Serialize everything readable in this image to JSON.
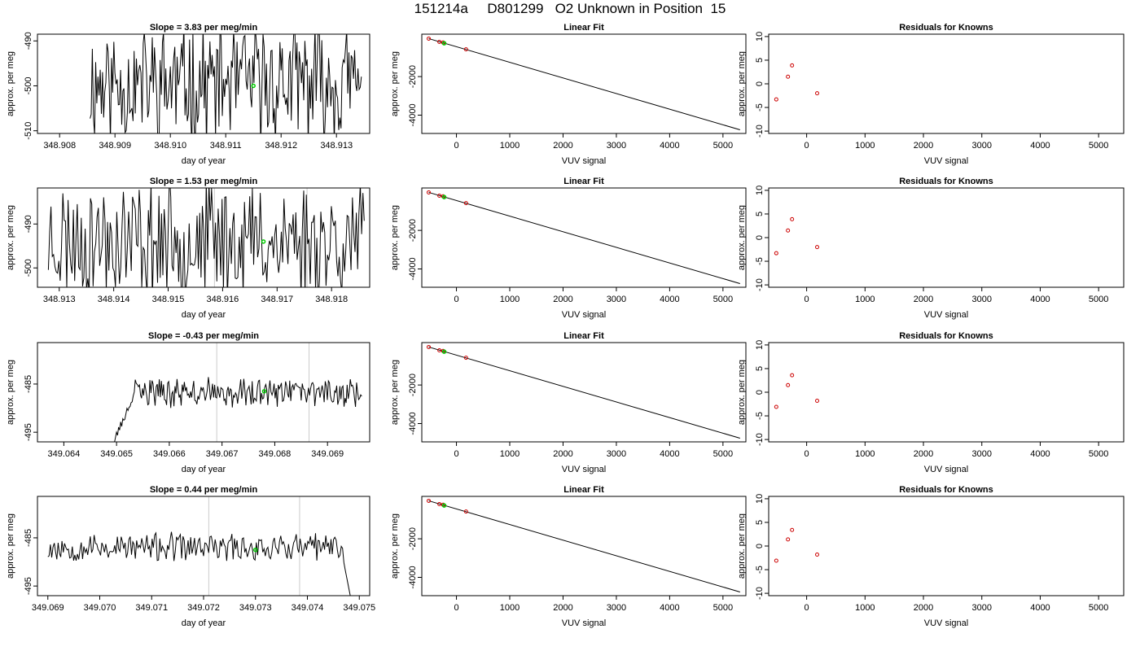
{
  "figure": {
    "title": "151214a     D801299   O2 Unknown in Position  15"
  },
  "chart_data": [
    {
      "type": "line",
      "panel": "signal-1",
      "title": "Slope =  3.83  per meg/min",
      "xlabel": "day of year",
      "ylabel": "approx. per meg",
      "xlim": [
        348.9076,
        348.9136
      ],
      "ylim": [
        -510.6,
        -488.5
      ],
      "xticks": [
        348.908,
        348.909,
        348.91,
        348.911,
        348.912,
        348.913
      ],
      "xtick_labels": [
        "348.908",
        "348.909",
        "348.910",
        "348.911",
        "348.912",
        "348.913"
      ],
      "yticks": [
        -510,
        -500,
        -490
      ],
      "ytick_labels": [
        "-510",
        "-500",
        "-490"
      ],
      "trace": {
        "x_start": 348.90855,
        "x_end": 348.91345,
        "baseline": -499.5,
        "amplitude": 11.5,
        "seed": 11
      },
      "vlines": [],
      "marker": {
        "x": 348.9115,
        "y": -500,
        "color": "#00cc00"
      }
    },
    {
      "type": "line",
      "panel": "signal-2",
      "title": "Slope =  1.53  per meg/min",
      "xlabel": "day of year",
      "ylabel": "approx. per meg",
      "xlim": [
        348.9126,
        348.9187
      ],
      "ylim": [
        -504.4,
        -481.8
      ],
      "xticks": [
        348.913,
        348.914,
        348.915,
        348.916,
        348.917,
        348.918
      ],
      "xtick_labels": [
        "348.913",
        "348.914",
        "348.915",
        "348.916",
        "348.917",
        "348.918"
      ],
      "yticks": [
        -500,
        -490
      ],
      "ytick_labels": [
        "-500",
        "-490"
      ],
      "trace": {
        "x_start": 348.9128,
        "x_end": 348.9186,
        "baseline": -493.5,
        "amplitude": 11.5,
        "seed": 23
      },
      "vlines": [
        348.91585,
        348.91755
      ],
      "marker": {
        "x": 348.91675,
        "y": -494,
        "color": "#00cc00"
      }
    },
    {
      "type": "line",
      "panel": "signal-3",
      "title": "Slope =  -0.43  per meg/min",
      "xlabel": "day of year",
      "ylabel": "approx. per meg",
      "xlim": [
        349.0635,
        349.0698
      ],
      "ylim": [
        -497.0,
        -476.4
      ],
      "xticks": [
        349.064,
        349.065,
        349.066,
        349.067,
        349.068,
        349.069
      ],
      "xtick_labels": [
        "349.064",
        "349.065",
        "349.066",
        "349.067",
        "349.068",
        "349.069"
      ],
      "yticks": [
        -495,
        -485
      ],
      "ytick_labels": [
        "-495",
        "-485"
      ],
      "trace": {
        "x_start": 349.0649,
        "x_end": 349.06965,
        "baseline": -486.8,
        "amplitude": 2.5,
        "seed": 37,
        "rise_from": -498,
        "rise_until": 349.06535
      },
      "vlines": [
        349.0669,
        349.06865
      ],
      "marker": {
        "x": 349.0678,
        "y": -486.5,
        "color": "#00cc00"
      }
    },
    {
      "type": "line",
      "panel": "signal-4",
      "title": "Slope =  0.44  per meg/min",
      "xlabel": "day of year",
      "ylabel": "approx. per meg",
      "xlim": [
        349.0688,
        349.0752
      ],
      "ylim": [
        -497.0,
        -476.4
      ],
      "xticks": [
        349.069,
        349.07,
        349.071,
        349.072,
        349.073,
        349.074,
        349.075
      ],
      "xtick_labels": [
        "349.069",
        "349.070",
        "349.071",
        "349.072",
        "349.073",
        "349.074",
        "349.075"
      ],
      "yticks": [
        -495,
        -485
      ],
      "ytick_labels": [
        "-495",
        "-485"
      ],
      "trace": {
        "x_start": 349.069,
        "x_end": 349.07495,
        "baseline": -487.0,
        "amplitude": 2.5,
        "seed": 53,
        "drop_after": 349.0747
      },
      "vlines": [
        349.0721,
        349.07385
      ],
      "marker": {
        "x": 349.073,
        "y": -487.5,
        "color": "#00cc00"
      }
    },
    {
      "type": "scatter",
      "panel": "fit-1",
      "title": "Linear Fit",
      "xlabel": "VUV signal",
      "ylabel": "approx. per meg",
      "xlim": [
        -650,
        5430
      ],
      "ylim": [
        -4950,
        200
      ],
      "xticks": [
        0,
        1000,
        2000,
        3000,
        4000,
        5000
      ],
      "xtick_labels": [
        "0",
        "1000",
        "2000",
        "3000",
        "4000",
        "5000"
      ],
      "yticks": [
        -4000,
        -2000
      ],
      "ytick_labels": [
        "-4000",
        "-2000"
      ],
      "fit_line": {
        "x": [
          -520,
          5320
        ],
        "y": [
          -30,
          -4760
        ]
      },
      "knowns": {
        "x": [
          -520,
          -320,
          -250,
          180
        ],
        "y": [
          -30,
          -200,
          -235,
          -585
        ],
        "color": "#cc0000"
      },
      "unknown": {
        "x": [
          -230
        ],
        "y": [
          -270
        ],
        "color": "#00cc00"
      }
    },
    {
      "type": "scatter",
      "panel": "fit-2",
      "title": "Linear Fit",
      "xlabel": "VUV signal",
      "ylabel": "approx. per meg",
      "xlim": [
        -650,
        5430
      ],
      "ylim": [
        -4950,
        200
      ],
      "xticks": [
        0,
        1000,
        2000,
        3000,
        4000,
        5000
      ],
      "xtick_labels": [
        "0",
        "1000",
        "2000",
        "3000",
        "4000",
        "5000"
      ],
      "yticks": [
        -4000,
        -2000
      ],
      "ytick_labels": [
        "-4000",
        "-2000"
      ],
      "fit_line": {
        "x": [
          -520,
          5320
        ],
        "y": [
          -30,
          -4760
        ]
      },
      "knowns": {
        "x": [
          -520,
          -320,
          -250,
          180
        ],
        "y": [
          -30,
          -200,
          -235,
          -585
        ],
        "color": "#cc0000"
      },
      "unknown": {
        "x": [
          -230
        ],
        "y": [
          -270
        ],
        "color": "#00cc00"
      }
    },
    {
      "type": "scatter",
      "panel": "fit-3",
      "title": "Linear Fit",
      "xlabel": "VUV signal",
      "ylabel": "approx. per meg",
      "xlim": [
        -650,
        5430
      ],
      "ylim": [
        -4950,
        200
      ],
      "xticks": [
        0,
        1000,
        2000,
        3000,
        4000,
        5000
      ],
      "xtick_labels": [
        "0",
        "1000",
        "2000",
        "3000",
        "4000",
        "5000"
      ],
      "yticks": [
        -4000,
        -2000
      ],
      "ytick_labels": [
        "-4000",
        "-2000"
      ],
      "fit_line": {
        "x": [
          -520,
          5320
        ],
        "y": [
          -30,
          -4760
        ]
      },
      "knowns": {
        "x": [
          -520,
          -320,
          -250,
          180
        ],
        "y": [
          -30,
          -200,
          -235,
          -585
        ],
        "color": "#cc0000"
      },
      "unknown": {
        "x": [
          -230
        ],
        "y": [
          -270
        ],
        "color": "#00cc00"
      }
    },
    {
      "type": "scatter",
      "panel": "fit-4",
      "title": "Linear Fit",
      "xlabel": "VUV signal",
      "ylabel": "approx. per meg",
      "xlim": [
        -650,
        5430
      ],
      "ylim": [
        -4950,
        200
      ],
      "xticks": [
        0,
        1000,
        2000,
        3000,
        4000,
        5000
      ],
      "xtick_labels": [
        "0",
        "1000",
        "2000",
        "3000",
        "4000",
        "5000"
      ],
      "yticks": [
        -4000,
        -2000
      ],
      "ytick_labels": [
        "-4000",
        "-2000"
      ],
      "fit_line": {
        "x": [
          -520,
          5320
        ],
        "y": [
          -30,
          -4760
        ]
      },
      "knowns": {
        "x": [
          -520,
          -320,
          -250,
          180
        ],
        "y": [
          -30,
          -200,
          -235,
          -585
        ],
        "color": "#cc0000"
      },
      "unknown": {
        "x": [
          -230
        ],
        "y": [
          -270
        ],
        "color": "#00cc00"
      }
    },
    {
      "type": "scatter",
      "panel": "residuals-1",
      "title": "Residuals for Knowns",
      "xlabel": "VUV signal",
      "ylabel": "approx. per meg",
      "xlim": [
        -650,
        5430
      ],
      "ylim": [
        -10.5,
        10.5
      ],
      "xticks": [
        0,
        1000,
        2000,
        3000,
        4000,
        5000
      ],
      "xtick_labels": [
        "0",
        "1000",
        "2000",
        "3000",
        "4000",
        "5000"
      ],
      "yticks": [
        -10,
        -5,
        0,
        5,
        10
      ],
      "ytick_labels": [
        "-10",
        "-5",
        "0",
        "5",
        "10"
      ],
      "points": {
        "x": [
          -520,
          -320,
          -250,
          180
        ],
        "y": [
          -3.3,
          1.5,
          3.9,
          -2.0
        ],
        "color": "#cc0000"
      }
    },
    {
      "type": "scatter",
      "panel": "residuals-2",
      "title": "Residuals for Knowns",
      "xlabel": "VUV signal",
      "ylabel": "approx. per meg",
      "xlim": [
        -650,
        5430
      ],
      "ylim": [
        -10.5,
        10.5
      ],
      "xticks": [
        0,
        1000,
        2000,
        3000,
        4000,
        5000
      ],
      "xtick_labels": [
        "0",
        "1000",
        "2000",
        "3000",
        "4000",
        "5000"
      ],
      "yticks": [
        -10,
        -5,
        0,
        5,
        10
      ],
      "ytick_labels": [
        "-10",
        "-5",
        "0",
        "5",
        "10"
      ],
      "points": {
        "x": [
          -520,
          -320,
          -250,
          180
        ],
        "y": [
          -3.3,
          1.5,
          3.9,
          -2.0
        ],
        "color": "#cc0000"
      }
    },
    {
      "type": "scatter",
      "panel": "residuals-3",
      "title": "Residuals for Knowns",
      "xlabel": "VUV signal",
      "ylabel": "approx. per meg",
      "xlim": [
        -650,
        5430
      ],
      "ylim": [
        -10.5,
        10.5
      ],
      "xticks": [
        0,
        1000,
        2000,
        3000,
        4000,
        5000
      ],
      "xtick_labels": [
        "0",
        "1000",
        "2000",
        "3000",
        "4000",
        "5000"
      ],
      "yticks": [
        -10,
        -5,
        0,
        5,
        10
      ],
      "ytick_labels": [
        "-10",
        "-5",
        "0",
        "5",
        "10"
      ],
      "points": {
        "x": [
          -520,
          -320,
          -250,
          180
        ],
        "y": [
          -3.1,
          1.5,
          3.6,
          -1.8
        ],
        "color": "#cc0000"
      }
    },
    {
      "type": "scatter",
      "panel": "residuals-4",
      "title": "Residuals for Knowns",
      "xlabel": "VUV signal",
      "ylabel": "approx. per meg",
      "xlim": [
        -650,
        5430
      ],
      "ylim": [
        -10.5,
        10.5
      ],
      "xticks": [
        0,
        1000,
        2000,
        3000,
        4000,
        5000
      ],
      "xtick_labels": [
        "0",
        "1000",
        "2000",
        "3000",
        "4000",
        "5000"
      ],
      "yticks": [
        -10,
        -5,
        0,
        5,
        10
      ],
      "ytick_labels": [
        "-10",
        "-5",
        "0",
        "5",
        "10"
      ],
      "points": {
        "x": [
          -520,
          -320,
          -250,
          180
        ],
        "y": [
          -3.1,
          1.4,
          3.4,
          -1.8
        ],
        "color": "#cc0000"
      }
    }
  ]
}
